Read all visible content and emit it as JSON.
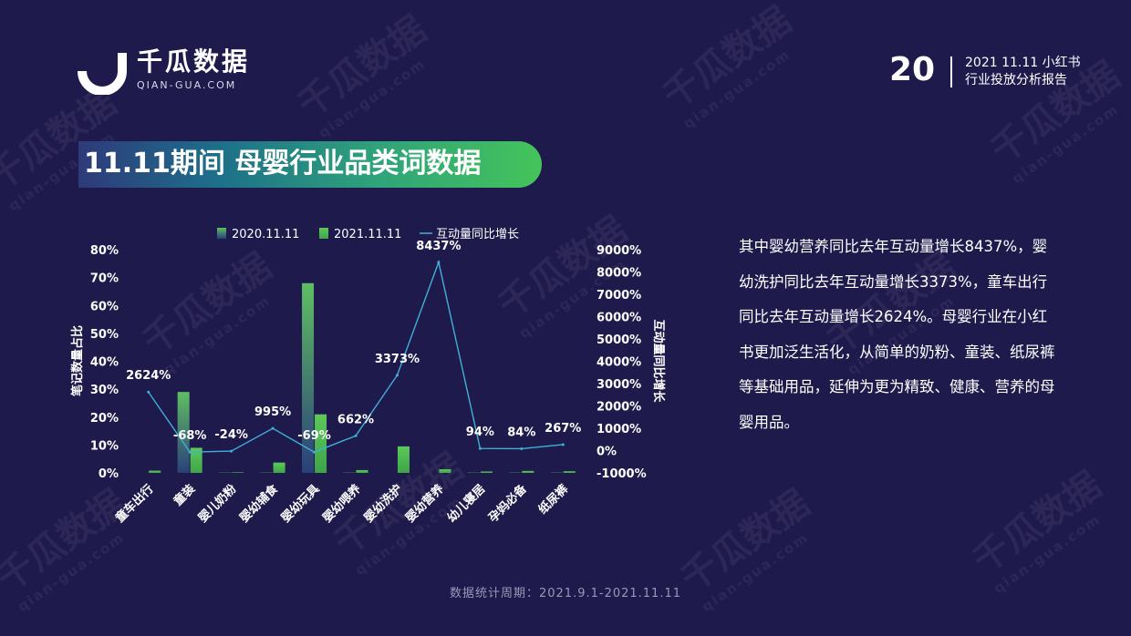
{
  "header": {
    "logo_cn": "千瓜数据",
    "logo_en": "QIAN-GUA.COM",
    "page_number": "20",
    "report_title_line1": "2021 11.11 小红书",
    "report_title_line2": "行业投放分析报告"
  },
  "banner_title": "11.11期间 母婴行业品类词数据",
  "watermark": {
    "cn": "千瓜数据",
    "en": "qian-gua.com"
  },
  "description": "其中婴幼营养同比去年互动量增长8437%，婴幼洗护同比去年互动量增长3373%，童车出行同比去年互动量增长2624%。母婴行业在小红书更加泛生活化，从简单的奶粉、童装、纸尿裤等基础用品，延伸为更为精致、健康、营养的母婴用品。",
  "footer": "数据统计周期：2021.9.1-2021.11.11",
  "colors": {
    "background": "#1f1a4c",
    "bar_2020": "#3f8a6a",
    "bar_2021": "#52c24f",
    "line": "#3fb0d8"
  },
  "chart_data": {
    "type": "bar",
    "categories": [
      "童车出行",
      "童装",
      "婴儿奶粉",
      "婴幼辅食",
      "婴幼玩具",
      "婴幼喂养",
      "婴幼洗护",
      "婴幼营养",
      "幼儿寝居",
      "孕妈必备",
      "纸尿裤"
    ],
    "series": [
      {
        "name": "2020.11.11",
        "type": "bar",
        "axis": "left",
        "values": [
          0.0,
          29.0,
          0.1,
          0.1,
          68.0,
          0.1,
          0.0,
          0.0,
          0.1,
          0.1,
          0.1
        ]
      },
      {
        "name": "2021.11.11",
        "type": "bar",
        "axis": "left",
        "values": [
          0.8,
          9.0,
          0.2,
          3.7,
          21.0,
          1.0,
          9.5,
          1.3,
          0.5,
          0.7,
          0.6
        ]
      },
      {
        "name": "互动量同比增长",
        "type": "line",
        "axis": "right",
        "values": [
          2624,
          -68,
          -24,
          995,
          -69,
          662,
          3373,
          8437,
          94,
          84,
          267
        ]
      }
    ],
    "line_labels": [
      "2624%",
      "-68%",
      "-24%",
      "995%",
      "-69%",
      "662%",
      "3373%",
      "8437%",
      "94%",
      "84%",
      "267%"
    ],
    "ylabel": "笔记数量占比",
    "y2label": "互动量同比增长",
    "ylim": [
      0,
      80
    ],
    "y2lim": [
      -1000,
      9000
    ],
    "yticks": [
      "0%",
      "10%",
      "20%",
      "30%",
      "40%",
      "50%",
      "60%",
      "70%",
      "80%"
    ],
    "y2ticks": [
      "-1000%",
      "0%",
      "1000%",
      "2000%",
      "3000%",
      "4000%",
      "5000%",
      "6000%",
      "7000%",
      "8000%",
      "9000%"
    ],
    "legend_position": "top-center",
    "grid": false
  }
}
